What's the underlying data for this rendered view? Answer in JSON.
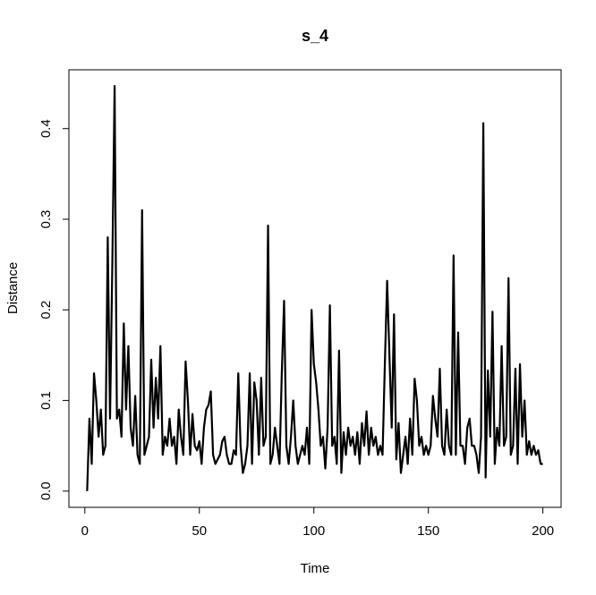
{
  "chart_data": {
    "type": "line",
    "title": "s_4",
    "xlabel": "Time",
    "ylabel": "Distance",
    "x": [
      1,
      2,
      3,
      4,
      5,
      6,
      7,
      8,
      9,
      10,
      11,
      12,
      13,
      14,
      15,
      16,
      17,
      18,
      19,
      20,
      21,
      22,
      23,
      24,
      25,
      26,
      27,
      28,
      29,
      30,
      31,
      32,
      33,
      34,
      35,
      36,
      37,
      38,
      39,
      40,
      41,
      42,
      43,
      44,
      45,
      46,
      47,
      48,
      49,
      50,
      51,
      52,
      53,
      54,
      55,
      56,
      57,
      58,
      59,
      60,
      61,
      62,
      63,
      64,
      65,
      66,
      67,
      68,
      69,
      70,
      71,
      72,
      73,
      74,
      75,
      76,
      77,
      78,
      79,
      80,
      81,
      82,
      83,
      84,
      85,
      86,
      87,
      88,
      89,
      90,
      91,
      92,
      93,
      94,
      95,
      96,
      97,
      98,
      99,
      100,
      101,
      102,
      103,
      104,
      105,
      106,
      107,
      108,
      109,
      110,
      111,
      112,
      113,
      114,
      115,
      116,
      117,
      118,
      119,
      120,
      121,
      122,
      123,
      124,
      125,
      126,
      127,
      128,
      129,
      130,
      131,
      132,
      133,
      134,
      135,
      136,
      137,
      138,
      139,
      140,
      141,
      142,
      143,
      144,
      145,
      146,
      147,
      148,
      149,
      150,
      151,
      152,
      153,
      154,
      155,
      156,
      157,
      158,
      159,
      160,
      161,
      162,
      163,
      164,
      165,
      166,
      167,
      168,
      169,
      170,
      171,
      172,
      173,
      174,
      175,
      176,
      177,
      178,
      179,
      180,
      181,
      182,
      183,
      184,
      185,
      186,
      187,
      188,
      189,
      190,
      191,
      192,
      193,
      194,
      195,
      196,
      197,
      198,
      199,
      200
    ],
    "series": [
      {
        "name": "s_4",
        "color": "#000000",
        "values": [
          0.0,
          0.08,
          0.03,
          0.13,
          0.1,
          0.06,
          0.09,
          0.04,
          0.05,
          0.28,
          0.08,
          0.25,
          0.447,
          0.08,
          0.09,
          0.06,
          0.185,
          0.09,
          0.16,
          0.07,
          0.05,
          0.105,
          0.04,
          0.03,
          0.31,
          0.04,
          0.05,
          0.06,
          0.145,
          0.07,
          0.125,
          0.08,
          0.16,
          0.04,
          0.06,
          0.05,
          0.08,
          0.05,
          0.06,
          0.03,
          0.09,
          0.06,
          0.04,
          0.143,
          0.1,
          0.04,
          0.085,
          0.05,
          0.045,
          0.055,
          0.03,
          0.07,
          0.09,
          0.095,
          0.11,
          0.04,
          0.03,
          0.035,
          0.04,
          0.055,
          0.06,
          0.04,
          0.03,
          0.03,
          0.045,
          0.04,
          0.13,
          0.05,
          0.02,
          0.03,
          0.05,
          0.13,
          0.03,
          0.12,
          0.1,
          0.04,
          0.125,
          0.05,
          0.06,
          0.293,
          0.03,
          0.04,
          0.07,
          0.05,
          0.03,
          0.13,
          0.21,
          0.05,
          0.03,
          0.06,
          0.1,
          0.05,
          0.03,
          0.04,
          0.05,
          0.04,
          0.07,
          0.03,
          0.2,
          0.14,
          0.12,
          0.09,
          0.05,
          0.06,
          0.025,
          0.07,
          0.205,
          0.05,
          0.06,
          0.03,
          0.155,
          0.02,
          0.065,
          0.04,
          0.07,
          0.05,
          0.06,
          0.04,
          0.065,
          0.03,
          0.075,
          0.05,
          0.088,
          0.04,
          0.07,
          0.05,
          0.06,
          0.04,
          0.05,
          0.04,
          0.14,
          0.232,
          0.15,
          0.07,
          0.195,
          0.035,
          0.075,
          0.02,
          0.04,
          0.06,
          0.03,
          0.08,
          0.04,
          0.124,
          0.1,
          0.05,
          0.06,
          0.04,
          0.05,
          0.04,
          0.05,
          0.105,
          0.08,
          0.06,
          0.135,
          0.05,
          0.04,
          0.09,
          0.05,
          0.04,
          0.26,
          0.04,
          0.175,
          0.05,
          0.05,
          0.03,
          0.07,
          0.08,
          0.05,
          0.05,
          0.04,
          0.02,
          0.06,
          0.406,
          0.015,
          0.133,
          0.06,
          0.198,
          0.03,
          0.07,
          0.05,
          0.16,
          0.05,
          0.06,
          0.235,
          0.04,
          0.05,
          0.135,
          0.03,
          0.14,
          0.06,
          0.1,
          0.04,
          0.055,
          0.04,
          0.05,
          0.04,
          0.045,
          0.03,
          0.03
        ]
      }
    ],
    "xlim": [
      -6.96,
      207.96
    ],
    "xticks": [
      0,
      50,
      100,
      150,
      200
    ],
    "ylim": [
      -0.0179,
      0.4649
    ],
    "yticks": [
      {
        "value": 0,
        "label": "0.0"
      },
      0.1,
      0.2,
      0.3,
      0.4
    ]
  }
}
